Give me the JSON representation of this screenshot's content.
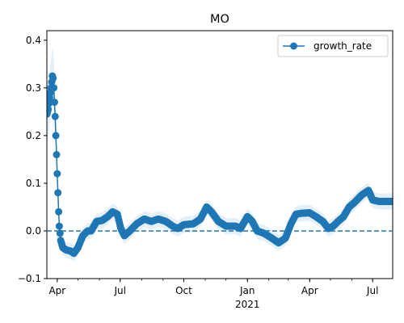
{
  "chart_data": {
    "type": "line",
    "title": "MO",
    "x_range": [
      "2020-03-17",
      "2021-07-30"
    ],
    "ylim": [
      -0.1,
      0.42
    ],
    "y_ticks": [
      -0.1,
      0.0,
      0.1,
      0.2,
      0.3,
      0.4
    ],
    "y_tick_labels": [
      "−0.1",
      "0.0",
      "0.1",
      "0.2",
      "0.3",
      "0.4"
    ],
    "x_ticks": [
      {
        "date": "2020-04-01",
        "label": "Apr",
        "sublabel": ""
      },
      {
        "date": "2020-07-01",
        "label": "Jul",
        "sublabel": ""
      },
      {
        "date": "2020-10-01",
        "label": "Oct",
        "sublabel": ""
      },
      {
        "date": "2021-01-01",
        "label": "Jan",
        "sublabel": "2021"
      },
      {
        "date": "2021-04-01",
        "label": "Apr",
        "sublabel": ""
      },
      {
        "date": "2021-07-01",
        "label": "Jul",
        "sublabel": ""
      }
    ],
    "reference_line": {
      "y": 0.0,
      "style": "dashed"
    },
    "legend": {
      "position": "top-right",
      "entries": [
        "growth_rate"
      ]
    },
    "grid": false,
    "series": [
      {
        "name": "growth_rate",
        "color": "#1f77b4",
        "band_color": "#c6dbef",
        "band_halfwidth": 0.012,
        "keypoints": [
          [
            "2020-03-17",
            0.245
          ],
          [
            "2020-03-19",
            0.255
          ],
          [
            "2020-03-21",
            0.28
          ],
          [
            "2020-03-23",
            0.3
          ],
          [
            "2020-03-25",
            0.325
          ],
          [
            "2020-03-26",
            0.32
          ],
          [
            "2020-03-27",
            0.3
          ],
          [
            "2020-03-28",
            0.27
          ],
          [
            "2020-03-29",
            0.24
          ],
          [
            "2020-03-30",
            0.2
          ],
          [
            "2020-03-31",
            0.16
          ],
          [
            "2020-04-01",
            0.12
          ],
          [
            "2020-04-02",
            0.08
          ],
          [
            "2020-04-03",
            0.04
          ],
          [
            "2020-04-04",
            0.01
          ],
          [
            "2020-04-06",
            -0.02
          ],
          [
            "2020-04-09",
            -0.035
          ],
          [
            "2020-04-14",
            -0.04
          ],
          [
            "2020-04-20",
            -0.042
          ],
          [
            "2020-04-25",
            -0.047
          ],
          [
            "2020-05-01",
            -0.035
          ],
          [
            "2020-05-08",
            -0.01
          ],
          [
            "2020-05-15",
            0.0
          ],
          [
            "2020-05-20",
            0.0
          ],
          [
            "2020-05-28",
            0.02
          ],
          [
            "2020-06-05",
            0.022
          ],
          [
            "2020-06-13",
            0.03
          ],
          [
            "2020-06-20",
            0.04
          ],
          [
            "2020-06-27",
            0.035
          ],
          [
            "2020-07-02",
            0.005
          ],
          [
            "2020-07-07",
            -0.01
          ],
          [
            "2020-07-15",
            0.0
          ],
          [
            "2020-07-25",
            0.015
          ],
          [
            "2020-08-05",
            0.025
          ],
          [
            "2020-08-15",
            0.02
          ],
          [
            "2020-08-25",
            0.025
          ],
          [
            "2020-09-05",
            0.02
          ],
          [
            "2020-09-15",
            0.01
          ],
          [
            "2020-09-22",
            0.005
          ],
          [
            "2020-10-01",
            0.013
          ],
          [
            "2020-10-15",
            0.015
          ],
          [
            "2020-10-25",
            0.025
          ],
          [
            "2020-11-03",
            0.05
          ],
          [
            "2020-11-10",
            0.04
          ],
          [
            "2020-11-20",
            0.02
          ],
          [
            "2020-12-01",
            0.01
          ],
          [
            "2020-12-15",
            0.01
          ],
          [
            "2020-12-22",
            0.005
          ],
          [
            "2021-01-01",
            0.03
          ],
          [
            "2021-01-08",
            0.02
          ],
          [
            "2021-01-15",
            0.0
          ],
          [
            "2021-01-25",
            -0.005
          ],
          [
            "2021-02-05",
            -0.015
          ],
          [
            "2021-02-15",
            -0.025
          ],
          [
            "2021-02-25",
            -0.015
          ],
          [
            "2021-03-05",
            0.015
          ],
          [
            "2021-03-12",
            0.035
          ],
          [
            "2021-03-20",
            0.037
          ],
          [
            "2021-04-01",
            0.038
          ],
          [
            "2021-04-10",
            0.03
          ],
          [
            "2021-04-20",
            0.02
          ],
          [
            "2021-04-28",
            0.005
          ],
          [
            "2021-05-05",
            0.01
          ],
          [
            "2021-05-12",
            0.02
          ],
          [
            "2021-05-20",
            0.03
          ],
          [
            "2021-05-28",
            0.05
          ],
          [
            "2021-06-05",
            0.06
          ],
          [
            "2021-06-15",
            0.075
          ],
          [
            "2021-06-25",
            0.085
          ],
          [
            "2021-07-01",
            0.065
          ],
          [
            "2021-07-10",
            0.062
          ],
          [
            "2021-07-30",
            0.062
          ]
        ]
      }
    ]
  }
}
